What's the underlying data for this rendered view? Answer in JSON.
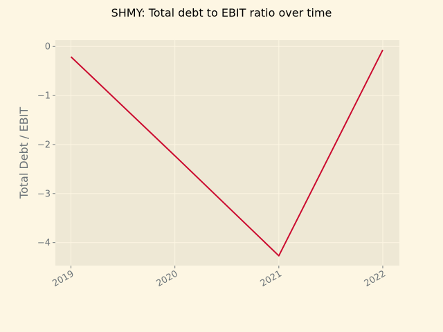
{
  "chart_data": {
    "type": "line",
    "title": "SHMY: Total debt to EBIT ratio over time",
    "xlabel": "",
    "ylabel": "Total Debt / EBIT",
    "x": [
      "2019",
      "2020",
      "2021",
      "2022"
    ],
    "x_numeric": [
      2019,
      2020,
      2021,
      2022
    ],
    "series": [
      {
        "values": [
          -0.21,
          -2.23,
          -4.27,
          -0.07
        ]
      }
    ],
    "xlim": [
      2018.85,
      2022.16
    ],
    "ylim": [
      -4.47,
      0.13
    ],
    "yticks": [
      0,
      -1,
      -2,
      -3,
      -4
    ],
    "ytick_labels": [
      "0",
      "−1",
      "−2",
      "−3",
      "−4"
    ],
    "xticks": [
      2019,
      2020,
      2021,
      2022
    ],
    "xtick_labels": [
      "2019",
      "2020",
      "2021",
      "2022"
    ],
    "grid": true,
    "legend": "none",
    "colors": {
      "background": "#fdf6e3",
      "plot_background": "#eee8d5",
      "line": "#cb0a2f",
      "grid": "#fdf6e3",
      "tick_text": "#6b7378",
      "axis_text": "#6b7378"
    }
  }
}
